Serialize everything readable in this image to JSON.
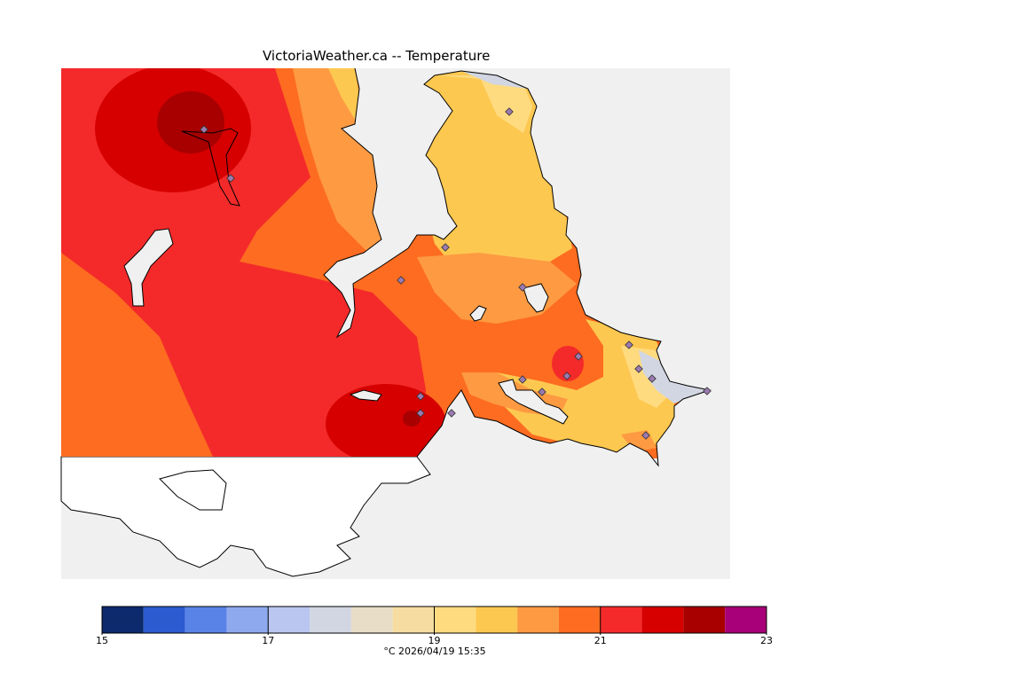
{
  "title": "VictoriaWeather.ca -- Temperature",
  "colors": {
    "background_sea": "#f0f0f0",
    "land_nodata": "#ffffff",
    "coast": "#000000",
    "station": "#9a7ab0"
  },
  "legend": {
    "min": 15,
    "max": 23,
    "step": 0.5,
    "tick_labels": [
      "15",
      "17",
      "19",
      "21",
      "23"
    ],
    "tick_values": [
      15,
      17,
      19,
      21,
      23
    ],
    "colors": [
      "#0c2a6c",
      "#2c5bd0",
      "#5983e6",
      "#8ea9ee",
      "#bac6f0",
      "#d1d6e2",
      "#e8ddc6",
      "#f6dca0",
      "#ffdb80",
      "#fdc850",
      "#fd9a42",
      "#fd6c20",
      "#f42a2a",
      "#d60000",
      "#a80000",
      "#a80078"
    ],
    "units_label": "°C  2026/04/19 15:35"
  }
}
